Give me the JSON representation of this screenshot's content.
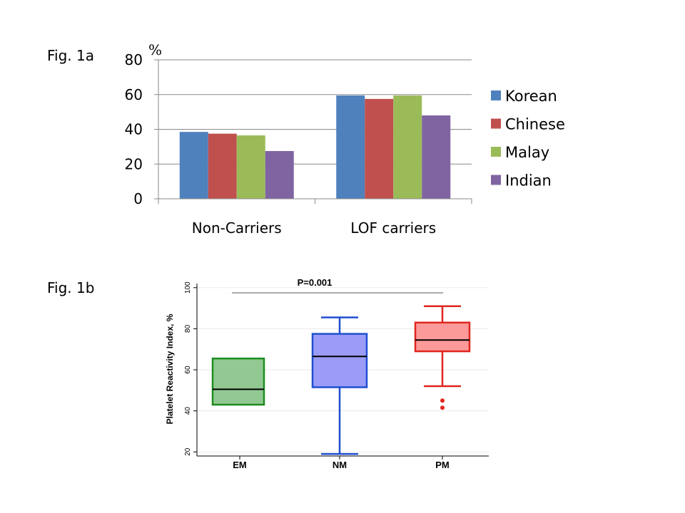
{
  "figures": {
    "fig1a_label": "Fig. 1a",
    "fig1b_label": "Fig. 1b"
  },
  "chart_data": [
    {
      "type": "bar",
      "title": "",
      "ylabel": "%",
      "xlabel": "",
      "ylim": [
        0,
        80
      ],
      "yticks": [
        "0",
        "20",
        "40",
        "60",
        "80"
      ],
      "categories": [
        "Non-Carriers",
        "LOF carriers"
      ],
      "series": [
        {
          "name": "Korean",
          "color": "#4F81BD",
          "values": [
            38.5,
            59.5
          ]
        },
        {
          "name": "Chinese",
          "color": "#C0504D",
          "values": [
            37.5,
            57.5
          ]
        },
        {
          "name": "Malay",
          "color": "#9BBB59",
          "values": [
            36.5,
            59.5
          ]
        },
        {
          "name": "Indian",
          "color": "#8064A2",
          "values": [
            27.5,
            48
          ]
        }
      ],
      "legend": "right",
      "grid": true
    },
    {
      "type": "box",
      "title": "",
      "ylabel": "Platelet Reactivity Index, %",
      "xlabel": "",
      "ylim": [
        18,
        102
      ],
      "yticks": [
        "20",
        "40",
        "60",
        "80",
        "100"
      ],
      "annotation": "P=0.001",
      "categories": [
        "EM",
        "NM",
        "PM"
      ],
      "boxes": [
        {
          "name": "EM",
          "color": "#1E8C1E",
          "fill": "#92C992",
          "min": 43,
          "q1": 43,
          "median": 50.5,
          "q3": 65.5,
          "max": 65.5,
          "outliers": []
        },
        {
          "name": "NM",
          "color": "#1F4FD0",
          "fill": "#9A9CF7",
          "min": 19,
          "q1": 51.5,
          "median": 66.5,
          "q3": 77.5,
          "max": 85.5,
          "outliers": []
        },
        {
          "name": "PM",
          "color": "#E0251E",
          "fill": "#FB9A98",
          "min": 52,
          "q1": 69,
          "median": 74.5,
          "q3": 83,
          "max": 91,
          "outliers": [
            45,
            41.5
          ]
        }
      ]
    }
  ]
}
